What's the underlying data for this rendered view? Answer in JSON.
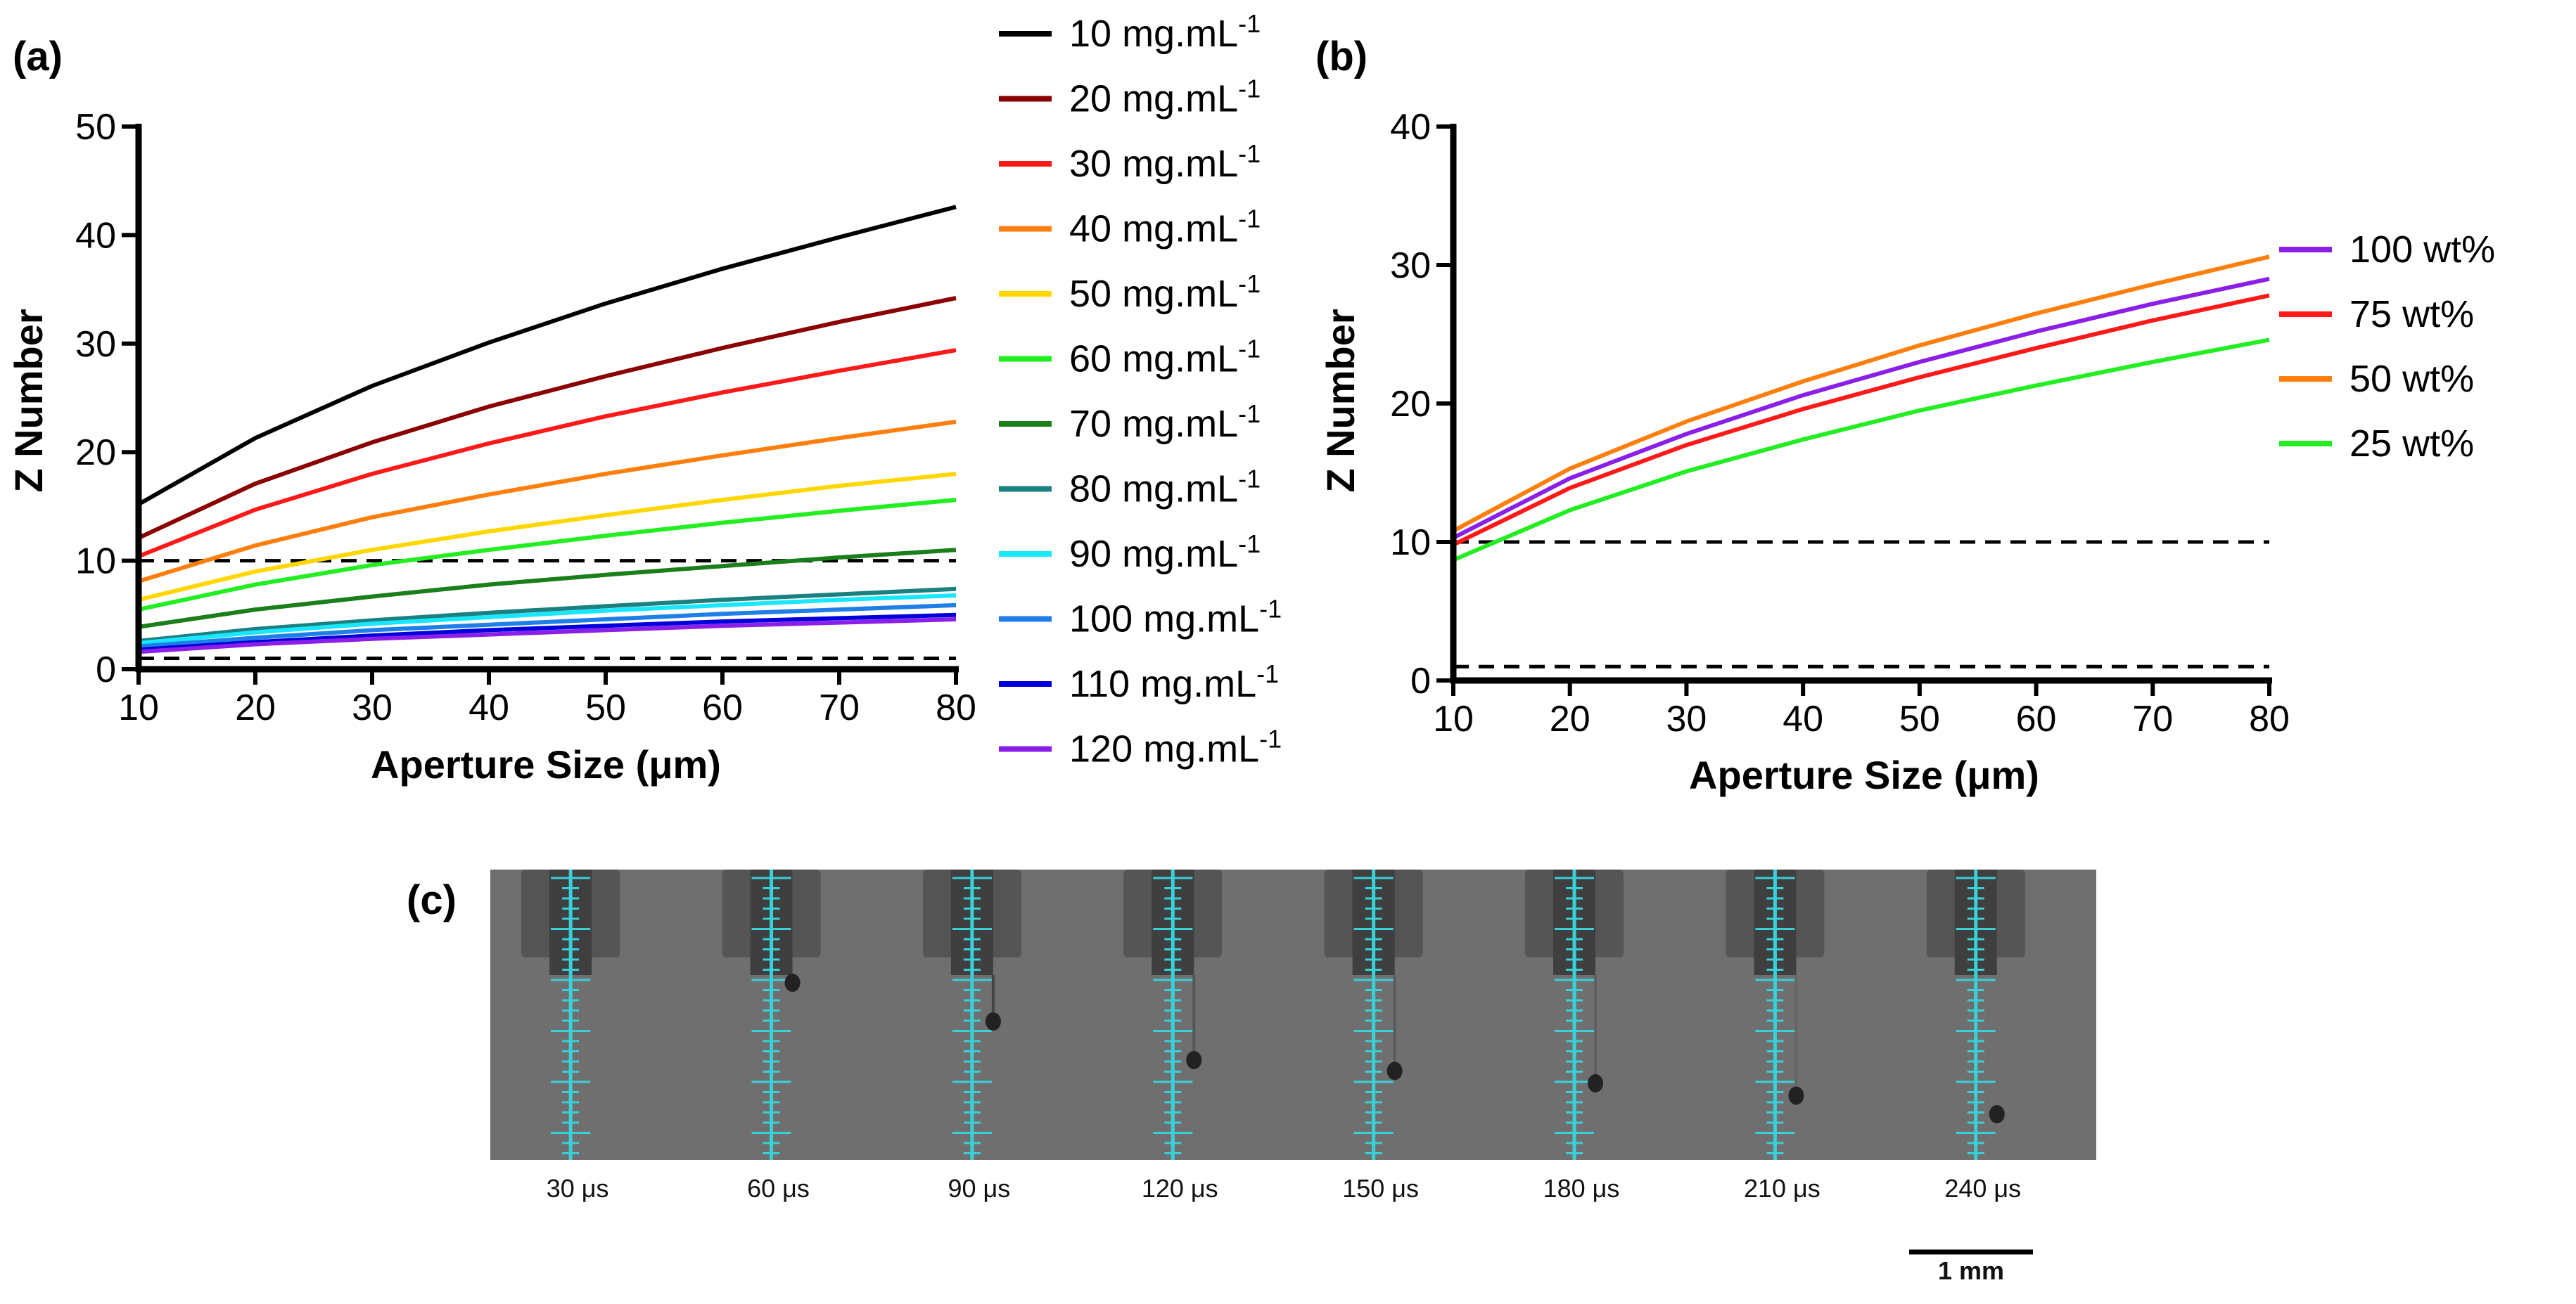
{
  "chart_data": [
    {
      "panel": "(a)",
      "type": "line",
      "xlabel": "Aperture Size (μm)",
      "ylabel": "Z Number",
      "xlim": [
        10,
        80
      ],
      "ylim": [
        0,
        50
      ],
      "xticks": [
        10,
        20,
        30,
        40,
        50,
        60,
        70,
        80
      ],
      "yticks": [
        0,
        10,
        20,
        30,
        40,
        50
      ],
      "x": [
        10,
        20,
        30,
        40,
        50,
        60,
        70,
        80
      ],
      "reference_lines": [
        1,
        10
      ],
      "legend_position": "right",
      "series": [
        {
          "name": "10 mg.mL",
          "sup": "-1",
          "color": "#000000",
          "values": [
            15.2,
            21.3,
            26.1,
            30.1,
            33.7,
            36.9,
            39.8,
            42.6
          ]
        },
        {
          "name": "20 mg.mL",
          "sup": "-1",
          "color": "#8b0000",
          "values": [
            12.1,
            17.1,
            20.9,
            24.2,
            27.0,
            29.6,
            32.0,
            34.2
          ]
        },
        {
          "name": "30 mg.mL",
          "sup": "-1",
          "color": "#ff1a1a",
          "values": [
            10.4,
            14.7,
            18.0,
            20.8,
            23.3,
            25.5,
            27.5,
            29.4
          ]
        },
        {
          "name": "40 mg.mL",
          "sup": "-1",
          "color": "#ff7f0e",
          "values": [
            8.1,
            11.4,
            14.0,
            16.1,
            18.0,
            19.7,
            21.3,
            22.8
          ]
        },
        {
          "name": "50 mg.mL",
          "sup": "-1",
          "color": "#ffd700",
          "values": [
            6.4,
            9.0,
            11.0,
            12.7,
            14.2,
            15.6,
            16.9,
            18.0
          ]
        },
        {
          "name": "60 mg.mL",
          "sup": "-1",
          "color": "#22ee22",
          "values": [
            5.5,
            7.8,
            9.6,
            11.0,
            12.3,
            13.5,
            14.6,
            15.6
          ]
        },
        {
          "name": "70 mg.mL",
          "sup": "-1",
          "color": "#1a7f1a",
          "values": [
            3.9,
            5.5,
            6.7,
            7.8,
            8.7,
            9.5,
            10.3,
            11.0
          ]
        },
        {
          "name": "80 mg.mL",
          "sup": "-1",
          "color": "#1a8080",
          "values": [
            2.6,
            3.7,
            4.5,
            5.2,
            5.8,
            6.4,
            6.9,
            7.4
          ]
        },
        {
          "name": "90 mg.mL",
          "sup": "-1",
          "color": "#19e6ff",
          "values": [
            2.4,
            3.4,
            4.2,
            4.8,
            5.4,
            5.9,
            6.4,
            6.8
          ]
        },
        {
          "name": "100 mg.mL",
          "sup": "-1",
          "color": "#1f7fe8",
          "values": [
            2.1,
            2.9,
            3.6,
            4.1,
            4.6,
            5.1,
            5.5,
            5.9
          ]
        },
        {
          "name": "110 mg.mL",
          "sup": "-1",
          "color": "#0000dd",
          "values": [
            1.8,
            2.5,
            3.1,
            3.6,
            4.0,
            4.4,
            4.7,
            5.0
          ]
        },
        {
          "name": "120 mg.mL",
          "sup": "-1",
          "color": "#8b1fe8",
          "values": [
            1.6,
            2.3,
            2.8,
            3.2,
            3.6,
            4.0,
            4.3,
            4.6
          ]
        }
      ]
    },
    {
      "panel": "(b)",
      "type": "line",
      "xlabel": "Aperture Size (μm)",
      "ylabel": "Z Number",
      "xlim": [
        10,
        80
      ],
      "ylim": [
        0,
        40
      ],
      "xticks": [
        10,
        20,
        30,
        40,
        50,
        60,
        70,
        80
      ],
      "yticks": [
        0,
        10,
        20,
        30,
        40
      ],
      "x": [
        10,
        20,
        30,
        40,
        50,
        60,
        70,
        80
      ],
      "reference_lines": [
        1,
        10
      ],
      "legend_position": "right",
      "series": [
        {
          "name": "100 wt%",
          "color": "#8b1fe8",
          "values": [
            10.3,
            14.6,
            17.8,
            20.6,
            23.0,
            25.2,
            27.2,
            29.0
          ]
        },
        {
          "name": "75 wt%",
          "color": "#ff1a1a",
          "values": [
            9.8,
            13.9,
            17.0,
            19.6,
            21.9,
            24.0,
            26.0,
            27.8
          ]
        },
        {
          "name": "50 wt%",
          "color": "#ff7f0e",
          "values": [
            10.8,
            15.3,
            18.7,
            21.6,
            24.2,
            26.5,
            28.6,
            30.6
          ]
        },
        {
          "name": "25 wt%",
          "color": "#22ee22",
          "values": [
            8.7,
            12.3,
            15.1,
            17.4,
            19.5,
            21.3,
            23.0,
            24.6
          ]
        }
      ]
    }
  ],
  "panel_c": {
    "label": "(c)",
    "frames": [
      "30 μs",
      "60 μs",
      "90 μs",
      "120 μs",
      "150 μs",
      "180 μs",
      "210 μs",
      "240 μs"
    ],
    "drop_positions": [
      0.0,
      0.05,
      0.3,
      0.55,
      0.62,
      0.7,
      0.78,
      0.9
    ],
    "scale_bar": "1 mm"
  }
}
